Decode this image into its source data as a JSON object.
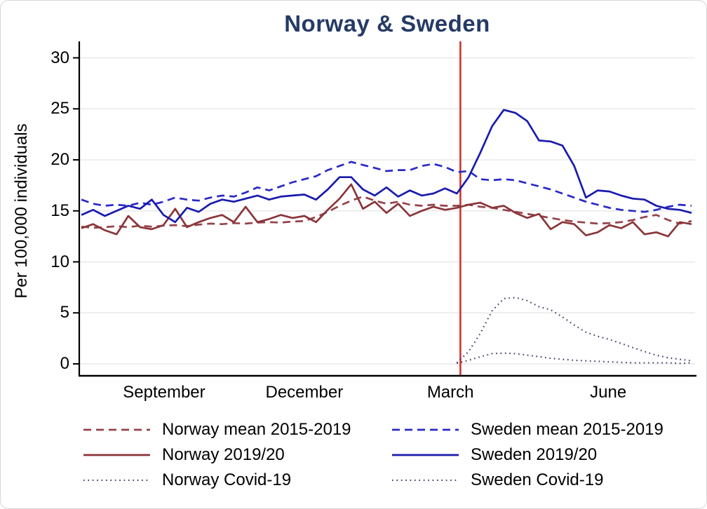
{
  "title": "Norway & Sweden",
  "y_axis": {
    "label": "Per 100,000 individuals"
  },
  "colors": {
    "title": "#253a66",
    "grid": "#e9e9e9",
    "axis": "#000000",
    "reference_line": "#cc3434",
    "norway_mean": "#96424a",
    "norway_2019": "#8a3539",
    "sweden_mean": "#2929c8",
    "sweden_2019": "#1a1aae",
    "covid_dotted": "#383860"
  },
  "chart_data": {
    "type": "line",
    "title": "Norway & Sweden",
    "ylabel": "Per 100,000 individuals",
    "ylim": [
      0,
      31.5
    ],
    "yticks": [
      0,
      5,
      10,
      15,
      20,
      25,
      30
    ],
    "grid": true,
    "legend_position": "bottom",
    "x_unit": "week (July through June)",
    "x_ticks": [
      {
        "label": "September",
        "week": 7.05
      },
      {
        "label": "December",
        "week": 19.0
      },
      {
        "label": "March",
        "week": 31.45
      },
      {
        "label": "June",
        "week": 44.9
      }
    ],
    "reference_line": {
      "week": 32.3,
      "color": "#cc3434",
      "orientation": "vertical"
    },
    "series": [
      {
        "name": "Norway mean 2015-2019",
        "style": "dashed",
        "color": "#96424a",
        "start_week": 0,
        "values": [
          13.45,
          13.35,
          13.4,
          13.5,
          13.4,
          13.55,
          13.45,
          13.55,
          13.6,
          13.5,
          13.65,
          13.75,
          13.7,
          13.8,
          13.75,
          13.85,
          13.9,
          13.85,
          13.95,
          14.0,
          14.4,
          14.9,
          15.5,
          16.0,
          16.4,
          16.0,
          15.7,
          15.9,
          15.6,
          15.5,
          15.6,
          15.5,
          15.5,
          15.6,
          15.4,
          15.3,
          15.1,
          14.9,
          14.7,
          14.5,
          14.3,
          14.1,
          13.95,
          13.85,
          13.75,
          13.8,
          13.9,
          14.1,
          14.4,
          14.6,
          14.1,
          13.75,
          14.0
        ]
      },
      {
        "name": "Norway 2019/20",
        "style": "solid",
        "color": "#8a3539",
        "start_week": 0,
        "values": [
          13.3,
          13.7,
          13.1,
          12.7,
          14.5,
          13.4,
          13.2,
          13.6,
          15.2,
          13.4,
          13.9,
          14.3,
          14.6,
          13.9,
          15.4,
          13.9,
          14.2,
          14.6,
          14.3,
          14.5,
          13.9,
          15.1,
          16.2,
          17.6,
          15.2,
          15.9,
          14.8,
          15.7,
          14.5,
          15.0,
          15.4,
          15.1,
          15.3,
          15.6,
          15.8,
          15.3,
          15.5,
          14.8,
          14.3,
          14.7,
          13.2,
          13.9,
          13.7,
          12.6,
          12.9,
          13.6,
          13.3,
          13.9,
          12.7,
          12.9,
          12.5,
          13.9,
          13.7
        ]
      },
      {
        "name": "Norway Covid-19",
        "style": "dotted",
        "color": "#383860",
        "start_week": 32,
        "values": [
          0.05,
          0.35,
          0.7,
          1.0,
          1.05,
          1.0,
          0.85,
          0.7,
          0.55,
          0.45,
          0.35,
          0.3,
          0.25,
          0.2,
          0.15,
          0.1,
          0.1,
          0.1,
          0.1,
          0.05,
          0.1
        ]
      },
      {
        "name": "Sweden mean 2015-2019",
        "style": "dashed",
        "color": "#2929c8",
        "start_week": 0,
        "values": [
          16.1,
          15.7,
          15.5,
          15.6,
          15.5,
          15.8,
          15.6,
          15.9,
          16.3,
          16.1,
          16.0,
          16.3,
          16.5,
          16.4,
          16.8,
          17.3,
          17.0,
          17.4,
          17.8,
          18.1,
          18.4,
          19.0,
          19.4,
          19.8,
          19.5,
          19.2,
          18.9,
          19.0,
          19.0,
          19.4,
          19.6,
          19.3,
          18.8,
          18.9,
          18.1,
          18.0,
          18.1,
          18.0,
          17.7,
          17.4,
          17.1,
          16.7,
          16.3,
          15.9,
          15.6,
          15.3,
          15.1,
          15.0,
          14.9,
          15.1,
          15.4,
          15.6,
          15.5
        ]
      },
      {
        "name": "Sweden 2019/20",
        "style": "solid",
        "color": "#1a1aae",
        "start_week": 0,
        "values": [
          14.6,
          15.1,
          14.5,
          15.0,
          15.5,
          15.2,
          16.1,
          14.6,
          13.9,
          15.3,
          14.9,
          15.7,
          16.1,
          15.9,
          16.2,
          16.5,
          16.1,
          16.4,
          16.5,
          16.6,
          16.1,
          17.1,
          18.3,
          18.3,
          17.1,
          16.5,
          17.3,
          16.4,
          17.0,
          16.5,
          16.7,
          17.2,
          16.7,
          18.3,
          20.7,
          23.3,
          24.9,
          24.6,
          23.8,
          21.9,
          21.8,
          21.4,
          19.4,
          16.3,
          17.0,
          16.9,
          16.5,
          16.2,
          16.1,
          15.5,
          15.2,
          15.1,
          14.8
        ]
      },
      {
        "name": "Sweden Covid-19",
        "style": "dotted",
        "color": "#383860",
        "start_week": 32,
        "values": [
          0.1,
          1.2,
          3.0,
          5.2,
          6.4,
          6.5,
          6.2,
          5.6,
          5.3,
          4.6,
          3.8,
          3.1,
          2.7,
          2.4,
          2.0,
          1.6,
          1.2,
          0.85,
          0.6,
          0.45,
          0.3
        ]
      }
    ]
  }
}
